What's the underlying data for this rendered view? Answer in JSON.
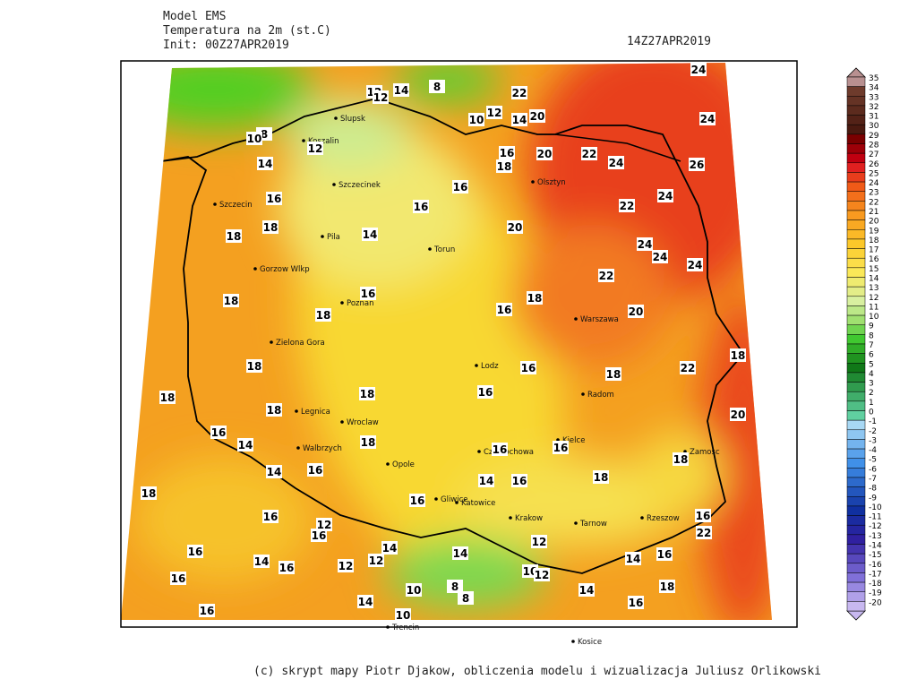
{
  "header": {
    "model": "Model EMS",
    "variable": "Temperatura na 2m (st.C)",
    "init": "Init: 00Z27APR2019",
    "valid": "14Z27APR2019"
  },
  "legend": {
    "levels": [
      35,
      34,
      33,
      32,
      31,
      30,
      29,
      28,
      27,
      26,
      25,
      24,
      23,
      22,
      21,
      20,
      19,
      18,
      17,
      16,
      15,
      14,
      13,
      12,
      11,
      10,
      9,
      8,
      7,
      6,
      5,
      4,
      3,
      2,
      1,
      0,
      -1,
      -2,
      -3,
      -4,
      -5,
      -6,
      -7,
      -8,
      -9,
      -10,
      -11,
      -12,
      -13,
      -14,
      -15,
      -16,
      -17,
      -18,
      -19,
      -20
    ]
  },
  "map": {
    "contour_labels": [
      24,
      22,
      8,
      14,
      12,
      12,
      12,
      10,
      14,
      20,
      24,
      8,
      10,
      12,
      16,
      18,
      20,
      22,
      24,
      26,
      14,
      16,
      24,
      16,
      16,
      22,
      20,
      18,
      18,
      14,
      24,
      24,
      24,
      22,
      18,
      16,
      18,
      16,
      20,
      18,
      18,
      16,
      18,
      22,
      18,
      18,
      18,
      16,
      18,
      20,
      16,
      14,
      18,
      16,
      16,
      14,
      16,
      18,
      18,
      16,
      14,
      16,
      18,
      16,
      12,
      16,
      16,
      22,
      16,
      14,
      12,
      14,
      16,
      12,
      12,
      14,
      16,
      14,
      10,
      12,
      16,
      10,
      8,
      14,
      18,
      14,
      8,
      16,
      16,
      10
    ],
    "cities": [
      "Slupsk",
      "Koszalin",
      "Szczecinek",
      "Szczecin",
      "Pila",
      "Torun",
      "Gorzow Wlkp",
      "Poznan",
      "Zielona Gora",
      "Legnica",
      "Wroclaw",
      "Walbrzych",
      "Opole",
      "Czestochowa",
      "Gliwice",
      "Katowice",
      "Krakow",
      "Tarnow",
      "Rzeszow",
      "Kielce",
      "Radom",
      "Lodz",
      "Warszawa",
      "Olsztyn",
      "Zamosc",
      "Kosice",
      "Trencin"
    ]
  },
  "footer": "(c) skrypt mapy Piotr Djakow, obliczenia modelu i wizualizacja Juliusz Orlikowski"
}
